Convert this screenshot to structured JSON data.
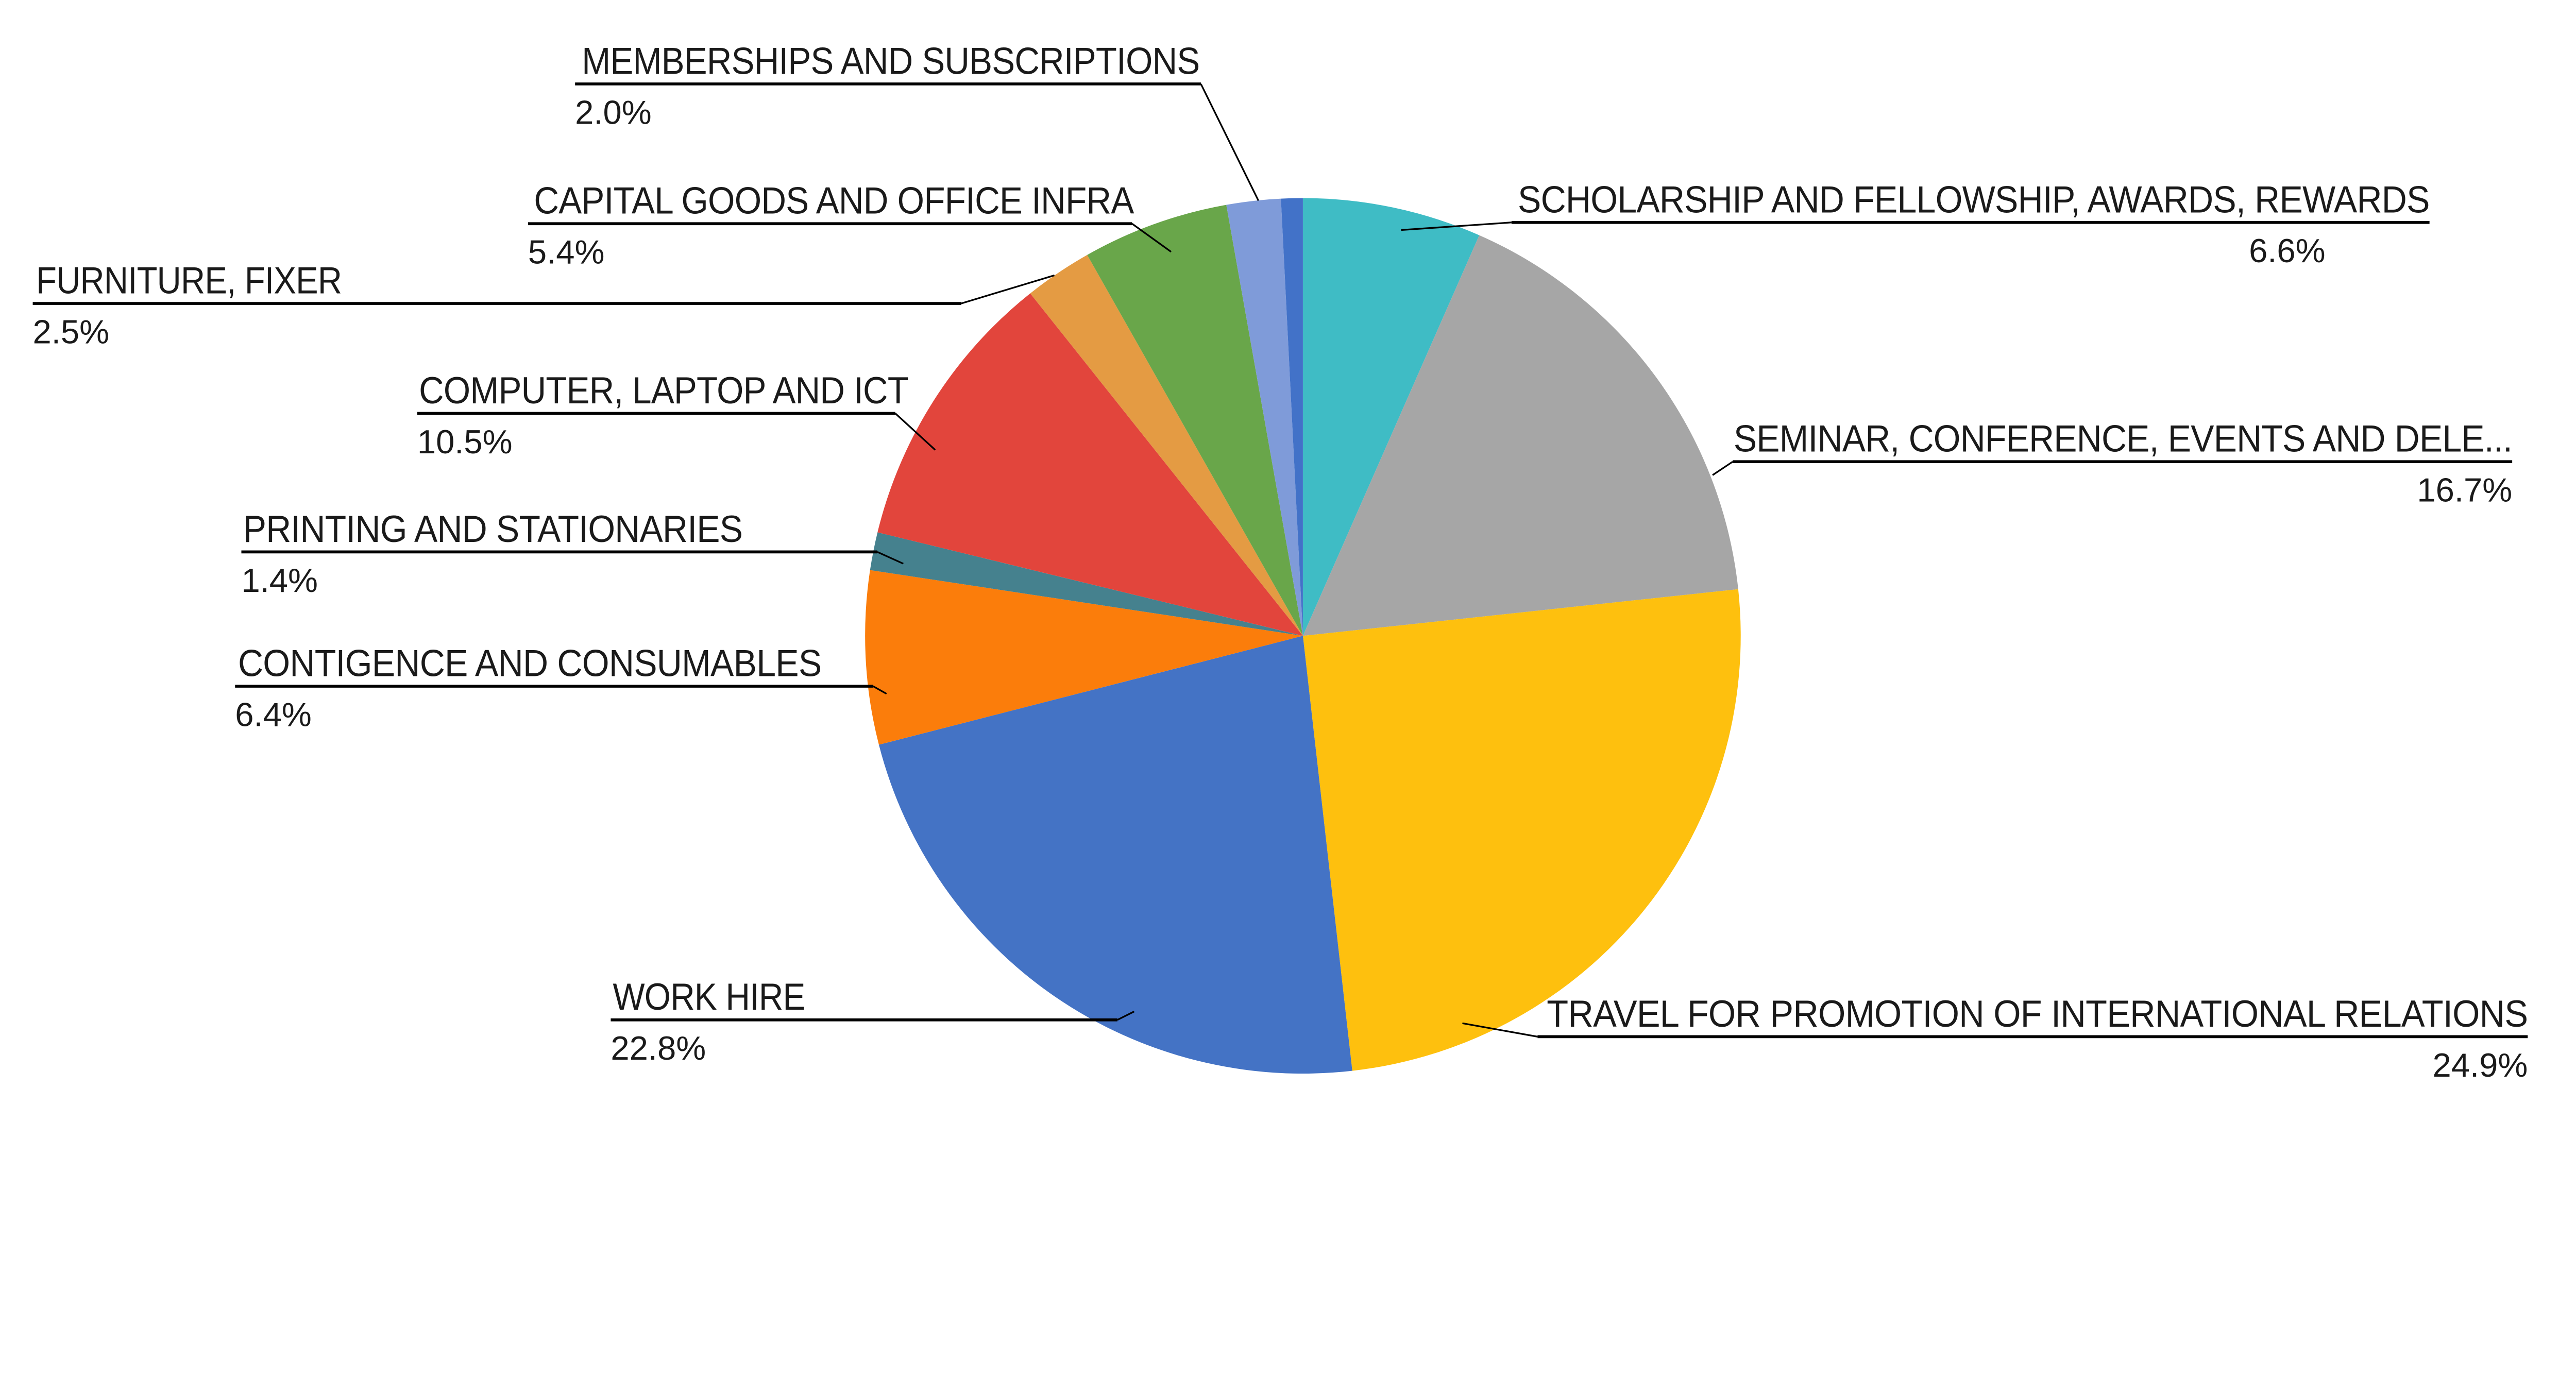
{
  "page": {
    "background": "#FFFFFF",
    "title": ""
  },
  "chart_data": {
    "type": "pie",
    "title": "",
    "legend_position": "none",
    "label_style": "outside callout labels with percent values",
    "start_angle_deg": 0,
    "direction": "clockwise",
    "label_color": "#1A1A1A",
    "line_color": "#000000",
    "slices": [
      {
        "label": "SCHOLARSHIP AND FELLOWSHIP, AWARDS, REWARDS",
        "pct_label": "6.6%",
        "value": 6.6,
        "color": "#3FBCC5"
      },
      {
        "label": "SEMINAR, CONFERENCE, EVENTS AND DELE...",
        "pct_label": "16.7%",
        "value": 16.7,
        "color": "#A6A6A6"
      },
      {
        "label": "TRAVEL FOR PROMOTION OF INTERNATIONAL RELATIONS",
        "pct_label": "24.9%",
        "value": 24.9,
        "color": "#FEC00E"
      },
      {
        "label": "WORK HIRE",
        "pct_label": "22.8%",
        "value": 22.8,
        "color": "#4473C5"
      },
      {
        "label": "CONTIGENCE AND CONSUMABLES",
        "pct_label": "6.4%",
        "value": 6.4,
        "color": "#FB7D0B"
      },
      {
        "label": "PRINTING AND STATIONARIES",
        "pct_label": "1.4%",
        "value": 1.4,
        "color": "#45818E"
      },
      {
        "label": "COMPUTER, LAPTOP AND ICT",
        "pct_label": "10.5%",
        "value": 10.5,
        "color": "#E2453C"
      },
      {
        "label": "FURNITURE, FIXER",
        "pct_label": "2.5%",
        "value": 2.5,
        "color": "#E49B43"
      },
      {
        "label": "CAPITAL GOODS AND OFFICE INFRA",
        "pct_label": "5.4%",
        "value": 5.4,
        "color": "#69A64A"
      },
      {
        "label": "MEMBERSHIPS AND SUBSCRIPTIONS",
        "pct_label": "2.0%",
        "value": 2.0,
        "color": "#7F9BD9"
      },
      {
        "label": "",
        "pct_label": "",
        "value": 0.8,
        "color": "#4272C8"
      }
    ]
  }
}
